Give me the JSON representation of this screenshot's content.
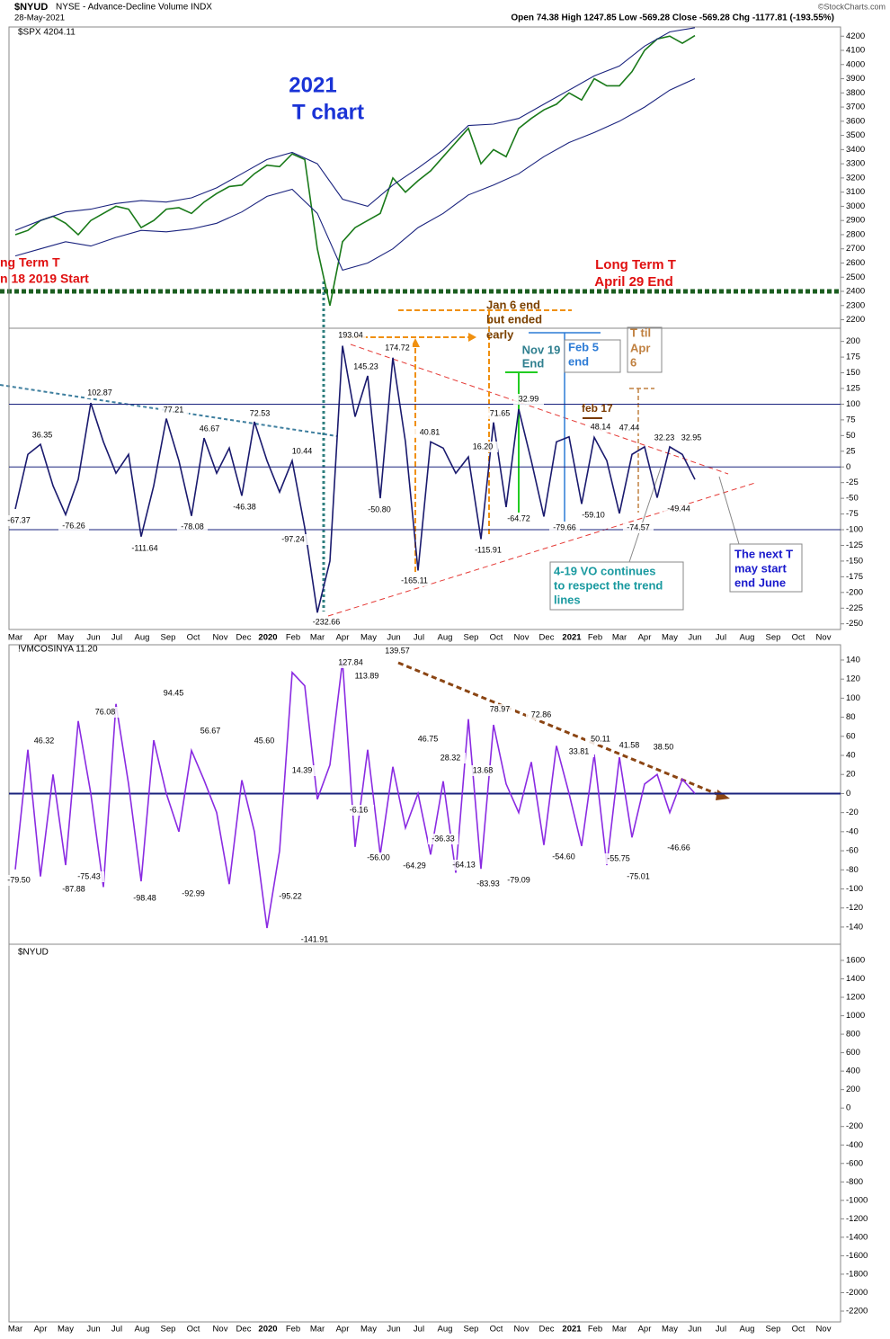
{
  "header": {
    "symbol": "$NYUD",
    "description": "NYSE - Advance-Decline Volume INDX",
    "date": "28-May-2021",
    "quote": "Open 74.38  High 1247.85  Low -569.28  Close -569.28  Chg -1177.81 (-193.55%)",
    "credit": "©StockCharts.com"
  },
  "annotations": [
    "2021",
    "T chart",
    "ng Term T",
    "n 18 2019 Start",
    "Long Term T",
    "April 29 End",
    "Jan 6 end",
    "but ended",
    "early",
    "Nov 19",
    "End",
    "Feb 5",
    "end",
    "T til",
    "Apr",
    "6",
    "feb 17",
    "4-19 VO continues",
    "to respect the trend",
    "lines",
    "The next T",
    "may start",
    "end June"
  ],
  "chart_data": [
    {
      "type": "line",
      "title": "$SPX 4204.11",
      "ylim": [
        2140,
        4265
      ],
      "yticks": [
        2200,
        2300,
        2400,
        2500,
        2600,
        2700,
        2800,
        2900,
        3000,
        3100,
        3200,
        3300,
        3400,
        3500,
        3600,
        3700,
        3800,
        3900,
        4000,
        4100,
        4200
      ],
      "series": [
        {
          "name": "SPX",
          "color": "#1a7a1a",
          "values": [
            2800,
            2830,
            2900,
            2930,
            2880,
            2800,
            2900,
            2950,
            3000,
            2980,
            2850,
            2900,
            2980,
            2990,
            2950,
            3030,
            3090,
            3140,
            3150,
            3230,
            3290,
            3280,
            3370,
            3330,
            2700,
            2300,
            2750,
            2850,
            2900,
            2950,
            3200,
            3100,
            3180,
            3250,
            3350,
            3450,
            3550,
            3300,
            3400,
            3350,
            3550,
            3620,
            3680,
            3720,
            3800,
            3750,
            3900,
            3850,
            3850,
            3950,
            4100,
            4180,
            4200,
            4150,
            4204
          ]
        },
        {
          "name": "Upper band",
          "color": "#1a237e",
          "values": [
            2830,
            2900,
            2960,
            2980,
            3020,
            3040,
            3030,
            3060,
            3130,
            3230,
            3330,
            3380,
            3300,
            3050,
            3000,
            3150,
            3270,
            3400,
            3570,
            3580,
            3620,
            3720,
            3820,
            3920,
            3990,
            4130,
            4230,
            4260
          ]
        },
        {
          "name": "Lower band",
          "color": "#1a237e",
          "values": [
            2650,
            2700,
            2750,
            2720,
            2780,
            2830,
            2820,
            2840,
            2880,
            2960,
            3070,
            3120,
            2950,
            2550,
            2600,
            2700,
            2850,
            2950,
            3080,
            3150,
            3230,
            3350,
            3450,
            3520,
            3600,
            3700,
            3820,
            3900
          ]
        }
      ]
    },
    {
      "type": "line",
      "ylim": [
        -259,
        221
      ],
      "yticks": [
        200,
        175,
        150,
        125,
        100,
        75,
        50,
        25,
        0,
        -25,
        -50,
        -75,
        -100,
        -125,
        -150,
        -175,
        -200,
        -225,
        -250
      ],
      "reference_lines": [
        100,
        0,
        -100
      ],
      "series": [
        {
          "name": "VO",
          "color": "#1a1a6e",
          "values": [
            -67,
            20,
            36,
            -30,
            -76,
            -20,
            102,
            40,
            -10,
            20,
            -111,
            -30,
            77,
            10,
            -78,
            46,
            -10,
            30,
            -46,
            72,
            10,
            -40,
            10,
            -97,
            -232,
            -150,
            193,
            80,
            145,
            -50,
            174,
            40,
            -165,
            40,
            30,
            -10,
            16,
            -115,
            71,
            -64,
            92,
            10,
            -79,
            40,
            48,
            -59,
            47,
            10,
            -74,
            20,
            32,
            -49,
            32,
            20,
            -20
          ]
        }
      ],
      "peak_labels": [
        "193.04",
        "174.72",
        "145.23",
        "102.87",
        "77.21",
        "72.53",
        "71.65",
        "32.99",
        "46.67",
        "36.35",
        "40.81",
        "48.14",
        "47.44",
        "32.23",
        "32.95",
        "16.20",
        "10.44",
        "-50.80",
        "-67.37",
        "-64.72",
        "-76.26",
        "-78.08",
        "-46.38",
        "-59.10",
        "-79.66",
        "-74.57",
        "-49.44",
        "-97.24",
        "-111.64",
        "-115.91",
        "-165.11",
        "-232.66"
      ],
      "x_labels": [
        "Mar",
        "Apr",
        "May",
        "Jun",
        "Jul",
        "Aug",
        "Sep",
        "Oct",
        "Nov",
        "Dec",
        "2020",
        "Feb",
        "Mar",
        "Apr",
        "May",
        "Jun",
        "Jul",
        "Aug",
        "Sep",
        "Oct",
        "Nov",
        "Dec",
        "2021",
        "Feb",
        "Mar",
        "Apr",
        "May",
        "Jun",
        "Jul",
        "Aug",
        "Sep",
        "Oct",
        "Nov"
      ]
    },
    {
      "type": "line",
      "title": "!VMCOSINYA 11.20",
      "ylim": [
        -158,
        156
      ],
      "yticks": [
        140,
        120,
        100,
        80,
        60,
        40,
        20,
        0,
        -20,
        -40,
        -60,
        -80,
        -100,
        -120,
        -140
      ],
      "reference_lines": [
        0
      ],
      "series": [
        {
          "name": "MCO",
          "color": "#8a2be2",
          "values": [
            -79.5,
            46,
            -87,
            20,
            -75,
            76,
            0,
            -98,
            94,
            10,
            -92,
            56,
            0,
            -40,
            45,
            14,
            -20,
            -95,
            14,
            -40,
            -141,
            -60,
            127,
            113,
            -6,
            30,
            139,
            -56,
            46,
            -64,
            28,
            -36,
            0,
            -64,
            13,
            -83,
            78,
            -79,
            72,
            10,
            -20,
            33,
            -54,
            50,
            0,
            -55,
            41,
            -75,
            38,
            -46,
            10,
            20,
            -20,
            15,
            0
          ]
        }
      ],
      "peak_labels": [
        "139.57",
        "127.84",
        "113.89",
        "94.45",
        "76.08",
        "78.97",
        "72.86",
        "56.67",
        "50.11",
        "46.32",
        "46.75",
        "45.60",
        "41.58",
        "38.50",
        "28.32",
        "33.81",
        "14.39",
        "13.68",
        "-6.16",
        "-36.33",
        "-46.66",
        "-54.60",
        "-55.75",
        "-56.00",
        "-64.29",
        "-64.13",
        "-79.09",
        "-83.93",
        "-75.01",
        "-79.50",
        "-75.43",
        "-87.88",
        "-92.99",
        "-95.22",
        "-98.48",
        "-141.91"
      ]
    },
    {
      "type": "line",
      "title": "$NYUD",
      "ylim": [
        -2317,
        1775
      ],
      "yticks": [
        1600,
        1400,
        1200,
        1000,
        800,
        600,
        400,
        200,
        0,
        -200,
        -400,
        -600,
        -800,
        -1000,
        -1200,
        -1400,
        -1600,
        -1800,
        -2000,
        -2200
      ],
      "series": [],
      "x_labels": [
        "Mar",
        "Apr",
        "May",
        "Jun",
        "Jul",
        "Aug",
        "Sep",
        "Oct",
        "Nov",
        "Dec",
        "2020",
        "Feb",
        "Mar",
        "Apr",
        "May",
        "Jun",
        "Jul",
        "Aug",
        "Sep",
        "Oct",
        "Nov",
        "Dec",
        "2021",
        "Feb",
        "Mar",
        "Apr",
        "May",
        "Jun",
        "Jul",
        "Aug",
        "Sep",
        "Oct",
        "Nov"
      ]
    }
  ]
}
